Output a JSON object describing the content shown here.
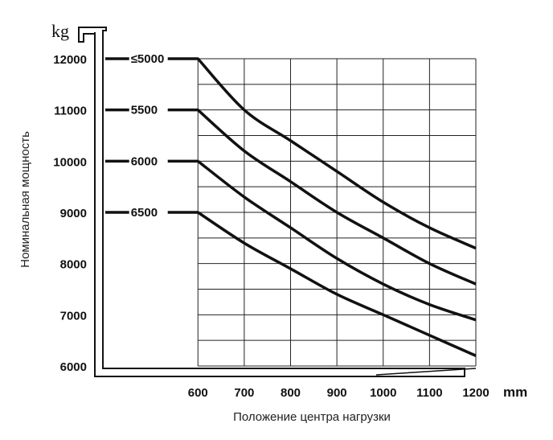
{
  "chart_data": {
    "type": "line",
    "title": "",
    "xlabel": "Положение центра нагрузки",
    "ylabel": "Номинальная мощность",
    "x_unit": "mm",
    "y_unit": "kg",
    "xlim": [
      400,
      1200
    ],
    "ylim": [
      6000,
      12000
    ],
    "x_ticks": [
      600,
      700,
      800,
      900,
      1000,
      1100,
      1200
    ],
    "y_ticks": [
      6000,
      7000,
      8000,
      9000,
      10000,
      11000,
      12000
    ],
    "grid": true,
    "legend": "inline labels at left of each curve",
    "series": [
      {
        "name": "≤5000",
        "x": [
          400,
          500,
          600,
          700,
          800,
          900,
          1000,
          1100,
          1200
        ],
        "y": [
          12000,
          12000,
          12000,
          11000,
          10400,
          9800,
          9200,
          8700,
          8300
        ]
      },
      {
        "name": "5500",
        "x": [
          400,
          500,
          600,
          700,
          800,
          900,
          1000,
          1100,
          1200
        ],
        "y": [
          11000,
          11000,
          11000,
          10200,
          9600,
          9000,
          8500,
          8000,
          7600
        ]
      },
      {
        "name": "6000",
        "x": [
          400,
          500,
          600,
          700,
          800,
          900,
          1000,
          1100,
          1200
        ],
        "y": [
          10000,
          10000,
          10000,
          9300,
          8700,
          8100,
          7600,
          7200,
          6900
        ]
      },
      {
        "name": "6500",
        "x": [
          400,
          500,
          600,
          700,
          800,
          900,
          1000,
          1100,
          1200
        ],
        "y": [
          9000,
          9000,
          9000,
          8400,
          7900,
          7400,
          7000,
          6600,
          6200
        ]
      }
    ]
  },
  "colors": {
    "line": "#111111",
    "grid": "#222222",
    "background": "#ffffff"
  }
}
